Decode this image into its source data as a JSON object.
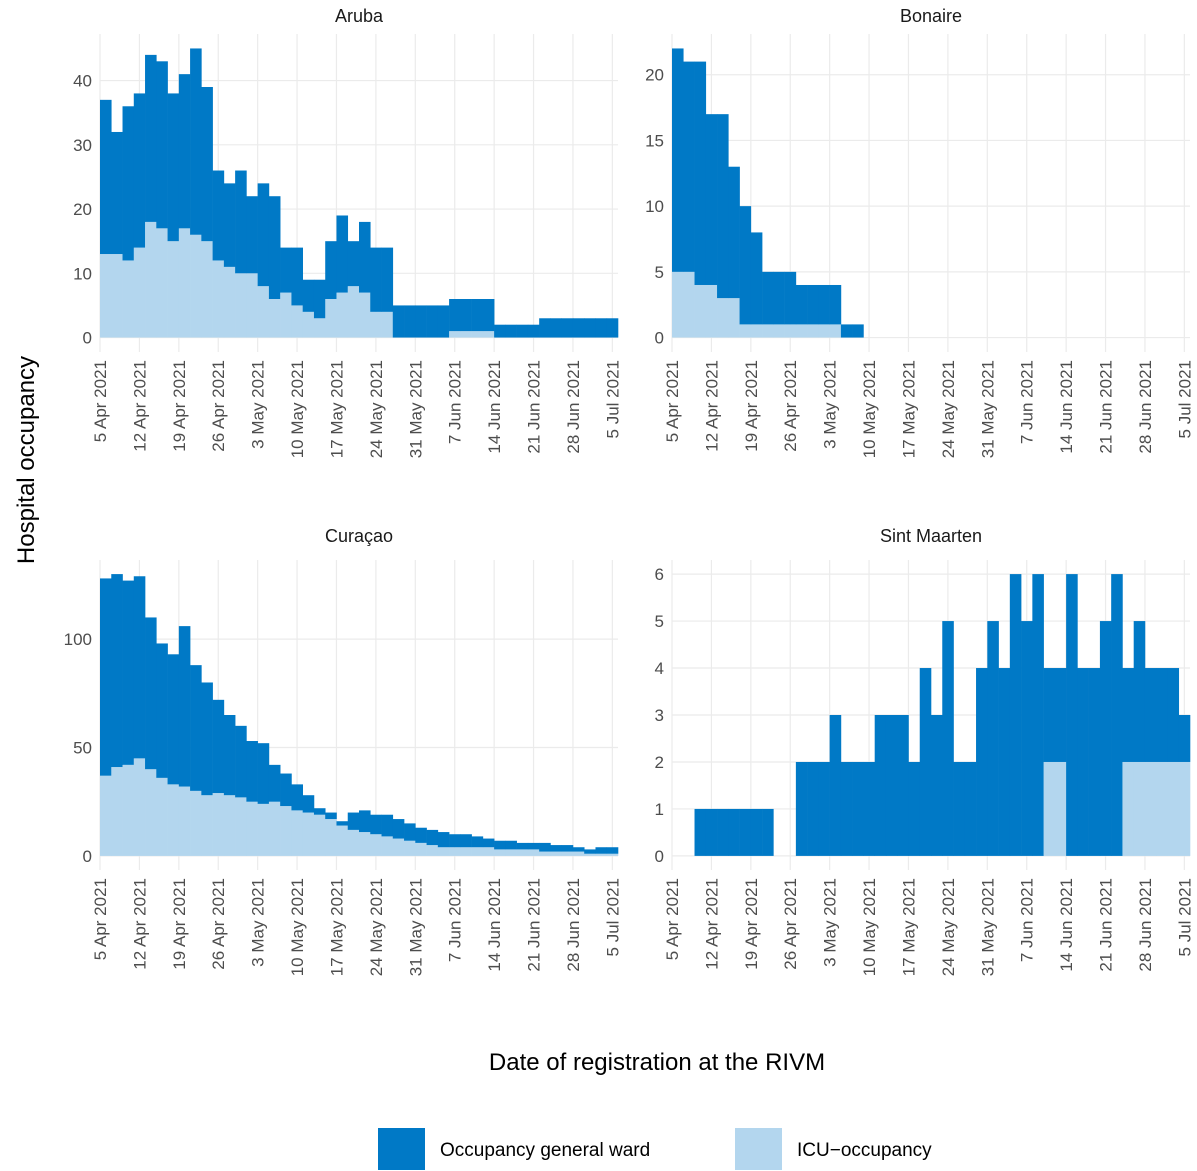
{
  "ylabel": "Hospital occupancy",
  "xlabel": "Date of registration at the RIVM",
  "chart_data": [
    {
      "type": "stacked-step",
      "title": "Aruba",
      "x": [
        "2021-04-05",
        "2021-04-07",
        "2021-04-09",
        "2021-04-11",
        "2021-04-13",
        "2021-04-15",
        "2021-04-17",
        "2021-04-19",
        "2021-04-21",
        "2021-04-23",
        "2021-04-25",
        "2021-04-27",
        "2021-04-29",
        "2021-05-01",
        "2021-05-03",
        "2021-05-05",
        "2021-05-07",
        "2021-05-09",
        "2021-05-11",
        "2021-05-13",
        "2021-05-15",
        "2021-05-17",
        "2021-05-19",
        "2021-05-21",
        "2021-05-23",
        "2021-05-25",
        "2021-05-27",
        "2021-05-29",
        "2021-05-31",
        "2021-06-02",
        "2021-06-04",
        "2021-06-06",
        "2021-06-08",
        "2021-06-10",
        "2021-06-12",
        "2021-06-14",
        "2021-06-16",
        "2021-06-18",
        "2021-06-20",
        "2021-06-22",
        "2021-06-24",
        "2021-06-26",
        "2021-06-28",
        "2021-06-30",
        "2021-07-02",
        "2021-07-04"
      ],
      "series": [
        {
          "name": "Occupancy general ward",
          "color": "#0079c6",
          "values": [
            24,
            19,
            24,
            24,
            26,
            26,
            23,
            24,
            29,
            24,
            14,
            13,
            16,
            12,
            16,
            16,
            7,
            9,
            5,
            6,
            9,
            12,
            7,
            11,
            10,
            10,
            5,
            5,
            5,
            5,
            5,
            5,
            5,
            5,
            5,
            2,
            2,
            2,
            2,
            3,
            3,
            3,
            3,
            3,
            3,
            3
          ]
        },
        {
          "name": "ICU−occupancy",
          "color": "#b3d6ee",
          "values": [
            13,
            13,
            12,
            14,
            18,
            17,
            15,
            17,
            16,
            15,
            12,
            11,
            10,
            10,
            8,
            6,
            7,
            5,
            4,
            3,
            6,
            7,
            8,
            7,
            4,
            4,
            0,
            0,
            0,
            0,
            0,
            1,
            1,
            1,
            1,
            0,
            0,
            0,
            0,
            0,
            0,
            0,
            0,
            0,
            0,
            0
          ]
        }
      ],
      "xlim": [
        "2021-04-05",
        "2021-07-06"
      ],
      "ylim": [
        -2.25,
        47.25
      ],
      "yticks": [
        0,
        10,
        20,
        30,
        40
      ],
      "xticks": [
        {
          "value": "2021-04-05",
          "label": "5 Apr 2021"
        },
        {
          "value": "2021-04-12",
          "label": "12 Apr 2021"
        },
        {
          "value": "2021-04-19",
          "label": "19 Apr 2021"
        },
        {
          "value": "2021-04-26",
          "label": "26 Apr 2021"
        },
        {
          "value": "2021-05-03",
          "label": "3 May 2021"
        },
        {
          "value": "2021-05-10",
          "label": "10 May 2021"
        },
        {
          "value": "2021-05-17",
          "label": "17 May 2021"
        },
        {
          "value": "2021-05-24",
          "label": "24 May 2021"
        },
        {
          "value": "2021-05-31",
          "label": "31 May 2021"
        },
        {
          "value": "2021-06-07",
          "label": "7 Jun 2021"
        },
        {
          "value": "2021-06-14",
          "label": "14 Jun 2021"
        },
        {
          "value": "2021-06-21",
          "label": "21 Jun 2021"
        },
        {
          "value": "2021-06-28",
          "label": "28 Jun 2021"
        },
        {
          "value": "2021-07-05",
          "label": "5 Jul 2021"
        }
      ],
      "grid": true
    },
    {
      "type": "stacked-step",
      "title": "Bonaire",
      "x": [
        "2021-04-05",
        "2021-04-07",
        "2021-04-09",
        "2021-04-11",
        "2021-04-13",
        "2021-04-15",
        "2021-04-17",
        "2021-04-19",
        "2021-04-21",
        "2021-04-23",
        "2021-04-25",
        "2021-04-27",
        "2021-04-29",
        "2021-05-01",
        "2021-05-03",
        "2021-05-05",
        "2021-05-07",
        "2021-05-09",
        "2021-05-11",
        "2021-05-13",
        "2021-05-15",
        "2021-05-17",
        "2021-05-19",
        "2021-05-21",
        "2021-05-23",
        "2021-05-25",
        "2021-05-27",
        "2021-05-29",
        "2021-05-31",
        "2021-06-02",
        "2021-06-04",
        "2021-06-06",
        "2021-06-08",
        "2021-06-10",
        "2021-06-12",
        "2021-06-14",
        "2021-06-16",
        "2021-06-18",
        "2021-06-20",
        "2021-06-22",
        "2021-06-24",
        "2021-06-26",
        "2021-06-28",
        "2021-06-30",
        "2021-07-02",
        "2021-07-04"
      ],
      "series": [
        {
          "name": "Occupancy general ward",
          "color": "#0079c6",
          "values": [
            17,
            16,
            17,
            13,
            14,
            10,
            9,
            7,
            4,
            4,
            4,
            3,
            3,
            3,
            3,
            1,
            1,
            0,
            0,
            0,
            0,
            0,
            0,
            0,
            0,
            0,
            0,
            0,
            0,
            0,
            0,
            0,
            0,
            0,
            0,
            0,
            0,
            0,
            0,
            0,
            0,
            0,
            0,
            0,
            0,
            0
          ]
        },
        {
          "name": "ICU−occupancy",
          "color": "#b3d6ee",
          "values": [
            5,
            5,
            4,
            4,
            3,
            3,
            1,
            1,
            1,
            1,
            1,
            1,
            1,
            1,
            1,
            0,
            0,
            0,
            0,
            0,
            0,
            0,
            0,
            0,
            0,
            0,
            0,
            0,
            0,
            0,
            0,
            0,
            0,
            0,
            0,
            0,
            0,
            0,
            0,
            0,
            0,
            0,
            0,
            0,
            0,
            0
          ]
        }
      ],
      "xlim": [
        "2021-04-05",
        "2021-07-06"
      ],
      "ylim": [
        -1.1,
        23.1
      ],
      "yticks": [
        0,
        5,
        10,
        15,
        20
      ],
      "xticks": [
        {
          "value": "2021-04-05",
          "label": "5 Apr 2021"
        },
        {
          "value": "2021-04-12",
          "label": "12 Apr 2021"
        },
        {
          "value": "2021-04-19",
          "label": "19 Apr 2021"
        },
        {
          "value": "2021-04-26",
          "label": "26 Apr 2021"
        },
        {
          "value": "2021-05-03",
          "label": "3 May 2021"
        },
        {
          "value": "2021-05-10",
          "label": "10 May 2021"
        },
        {
          "value": "2021-05-17",
          "label": "17 May 2021"
        },
        {
          "value": "2021-05-24",
          "label": "24 May 2021"
        },
        {
          "value": "2021-05-31",
          "label": "31 May 2021"
        },
        {
          "value": "2021-06-07",
          "label": "7 Jun 2021"
        },
        {
          "value": "2021-06-14",
          "label": "14 Jun 2021"
        },
        {
          "value": "2021-06-21",
          "label": "21 Jun 2021"
        },
        {
          "value": "2021-06-28",
          "label": "28 Jun 2021"
        },
        {
          "value": "2021-07-05",
          "label": "5 Jul 2021"
        }
      ],
      "grid": true
    },
    {
      "type": "stacked-step",
      "title": "Curaçao",
      "x": [
        "2021-04-05",
        "2021-04-07",
        "2021-04-09",
        "2021-04-11",
        "2021-04-13",
        "2021-04-15",
        "2021-04-17",
        "2021-04-19",
        "2021-04-21",
        "2021-04-23",
        "2021-04-25",
        "2021-04-27",
        "2021-04-29",
        "2021-05-01",
        "2021-05-03",
        "2021-05-05",
        "2021-05-07",
        "2021-05-09",
        "2021-05-11",
        "2021-05-13",
        "2021-05-15",
        "2021-05-17",
        "2021-05-19",
        "2021-05-21",
        "2021-05-23",
        "2021-05-25",
        "2021-05-27",
        "2021-05-29",
        "2021-05-31",
        "2021-06-02",
        "2021-06-04",
        "2021-06-06",
        "2021-06-08",
        "2021-06-10",
        "2021-06-12",
        "2021-06-14",
        "2021-06-16",
        "2021-06-18",
        "2021-06-20",
        "2021-06-22",
        "2021-06-24",
        "2021-06-26",
        "2021-06-28",
        "2021-06-30",
        "2021-07-02",
        "2021-07-04"
      ],
      "series": [
        {
          "name": "Occupancy general ward",
          "color": "#0079c6",
          "values": [
            91,
            89,
            85,
            84,
            70,
            62,
            60,
            74,
            58,
            52,
            43,
            37,
            33,
            28,
            28,
            17,
            15,
            12,
            8,
            3,
            3,
            2,
            8,
            10,
            9,
            10,
            9,
            8,
            7,
            7,
            7,
            6,
            6,
            5,
            4,
            4,
            4,
            3,
            3,
            4,
            3,
            3,
            2,
            2,
            3,
            3
          ]
        },
        {
          "name": "ICU−occupancy",
          "color": "#b3d6ee",
          "values": [
            37,
            41,
            42,
            45,
            40,
            36,
            33,
            32,
            30,
            28,
            29,
            28,
            27,
            25,
            24,
            25,
            23,
            21,
            20,
            19,
            17,
            14,
            12,
            11,
            10,
            9,
            8,
            7,
            6,
            5,
            4,
            4,
            4,
            4,
            4,
            3,
            3,
            3,
            3,
            2,
            2,
            2,
            2,
            1,
            1,
            1
          ]
        }
      ],
      "xlim": [
        "2021-04-05",
        "2021-07-06"
      ],
      "ylim": [
        -6.5,
        136.5
      ],
      "yticks": [
        0,
        50,
        100
      ],
      "xticks": [
        {
          "value": "2021-04-05",
          "label": "5 Apr 2021"
        },
        {
          "value": "2021-04-12",
          "label": "12 Apr 2021"
        },
        {
          "value": "2021-04-19",
          "label": "19 Apr 2021"
        },
        {
          "value": "2021-04-26",
          "label": "26 Apr 2021"
        },
        {
          "value": "2021-05-03",
          "label": "3 May 2021"
        },
        {
          "value": "2021-05-10",
          "label": "10 May 2021"
        },
        {
          "value": "2021-05-17",
          "label": "17 May 2021"
        },
        {
          "value": "2021-05-24",
          "label": "24 May 2021"
        },
        {
          "value": "2021-05-31",
          "label": "31 May 2021"
        },
        {
          "value": "2021-06-07",
          "label": "7 Jun 2021"
        },
        {
          "value": "2021-06-14",
          "label": "14 Jun 2021"
        },
        {
          "value": "2021-06-21",
          "label": "21 Jun 2021"
        },
        {
          "value": "2021-06-28",
          "label": "28 Jun 2021"
        },
        {
          "value": "2021-07-05",
          "label": "5 Jul 2021"
        }
      ],
      "grid": true
    },
    {
      "type": "stacked-step",
      "title": "Sint Maarten",
      "x": [
        "2021-04-05",
        "2021-04-07",
        "2021-04-09",
        "2021-04-11",
        "2021-04-13",
        "2021-04-15",
        "2021-04-17",
        "2021-04-19",
        "2021-04-21",
        "2021-04-23",
        "2021-04-25",
        "2021-04-27",
        "2021-04-29",
        "2021-05-01",
        "2021-05-03",
        "2021-05-05",
        "2021-05-07",
        "2021-05-09",
        "2021-05-11",
        "2021-05-13",
        "2021-05-15",
        "2021-05-17",
        "2021-05-19",
        "2021-05-21",
        "2021-05-23",
        "2021-05-25",
        "2021-05-27",
        "2021-05-29",
        "2021-05-31",
        "2021-06-02",
        "2021-06-04",
        "2021-06-06",
        "2021-06-08",
        "2021-06-10",
        "2021-06-12",
        "2021-06-14",
        "2021-06-16",
        "2021-06-18",
        "2021-06-20",
        "2021-06-22",
        "2021-06-24",
        "2021-06-26",
        "2021-06-28",
        "2021-06-30",
        "2021-07-02",
        "2021-07-04"
      ],
      "series": [
        {
          "name": "Occupancy general ward",
          "color": "#0079c6",
          "values": [
            0,
            0,
            1,
            1,
            1,
            1,
            1,
            1,
            1,
            0,
            0,
            2,
            2,
            2,
            3,
            2,
            2,
            2,
            3,
            3,
            3,
            2,
            4,
            3,
            5,
            2,
            2,
            4,
            5,
            4,
            6,
            5,
            6,
            2,
            2,
            6,
            4,
            4,
            5,
            6,
            2,
            3,
            2,
            2,
            2,
            1
          ]
        },
        {
          "name": "ICU−occupancy",
          "color": "#b3d6ee",
          "values": [
            0,
            0,
            0,
            0,
            0,
            0,
            0,
            0,
            0,
            0,
            0,
            0,
            0,
            0,
            0,
            0,
            0,
            0,
            0,
            0,
            0,
            0,
            0,
            0,
            0,
            0,
            0,
            0,
            0,
            0,
            0,
            0,
            0,
            2,
            2,
            0,
            0,
            0,
            0,
            0,
            2,
            2,
            2,
            2,
            2,
            2
          ]
        }
      ],
      "xlim": [
        "2021-04-05",
        "2021-07-06"
      ],
      "ylim": [
        -0.3,
        6.3
      ],
      "yticks": [
        0,
        1,
        2,
        3,
        4,
        5,
        6
      ],
      "xticks": [
        {
          "value": "2021-04-05",
          "label": "5 Apr 2021"
        },
        {
          "value": "2021-04-12",
          "label": "12 Apr 2021"
        },
        {
          "value": "2021-04-19",
          "label": "19 Apr 2021"
        },
        {
          "value": "2021-04-26",
          "label": "26 Apr 2021"
        },
        {
          "value": "2021-05-03",
          "label": "3 May 2021"
        },
        {
          "value": "2021-05-10",
          "label": "10 May 2021"
        },
        {
          "value": "2021-05-17",
          "label": "17 May 2021"
        },
        {
          "value": "2021-05-24",
          "label": "24 May 2021"
        },
        {
          "value": "2021-05-31",
          "label": "31 May 2021"
        },
        {
          "value": "2021-06-07",
          "label": "7 Jun 2021"
        },
        {
          "value": "2021-06-14",
          "label": "14 Jun 2021"
        },
        {
          "value": "2021-06-21",
          "label": "21 Jun 2021"
        },
        {
          "value": "2021-06-28",
          "label": "28 Jun 2021"
        },
        {
          "value": "2021-07-05",
          "label": "5 Jul 2021"
        }
      ],
      "grid": true
    }
  ]
}
